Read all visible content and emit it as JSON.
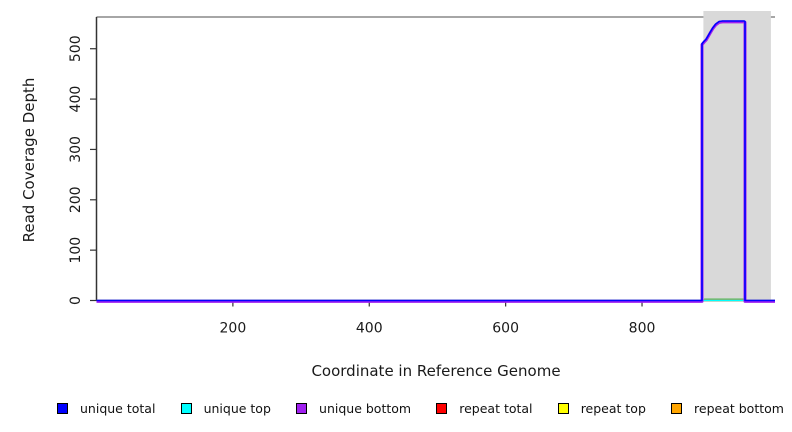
{
  "figure": {
    "background": "#ffffff",
    "text_color": "#1a1a1a"
  },
  "chart_data": {
    "type": "line",
    "title": "",
    "xlabel": "Coordinate in Reference Genome",
    "ylabel": "Read Coverage Depth",
    "xlim": [
      0,
      995
    ],
    "ylim": [
      0,
      563
    ],
    "xticks": [
      200,
      400,
      600,
      800
    ],
    "yticks": [
      0,
      100,
      200,
      300,
      400,
      500
    ],
    "grid": false,
    "box": {
      "top_border_color": "#999999",
      "axis_color": "#333333"
    },
    "highlight_region": {
      "x_start": 890,
      "x_end": 989,
      "fill": "#d9d9d9"
    },
    "extra_segments": [
      {
        "name": "baseline-green-segment",
        "color": "#6fbf6f",
        "x_start": 891,
        "x_end": 950,
        "y": 0
      }
    ],
    "series": [
      {
        "name": "repeat top",
        "color": "#ffff00",
        "stroke_width": 1.6,
        "points": [
          [
            0,
            0
          ],
          [
            995,
            0
          ]
        ]
      },
      {
        "name": "repeat bottom",
        "color": "#ffa500",
        "stroke_width": 1.6,
        "points": [
          [
            0,
            0
          ],
          [
            995,
            0
          ]
        ]
      },
      {
        "name": "repeat total",
        "color": "#ff0000",
        "stroke_width": 1.6,
        "points": [
          [
            0,
            0
          ],
          [
            995,
            0
          ]
        ]
      },
      {
        "name": "unique top",
        "color": "#00ffff",
        "stroke_width": 1.6,
        "points": [
          [
            0,
            0
          ],
          [
            995,
            0
          ]
        ]
      },
      {
        "name": "unique bottom",
        "color": "#a020f0",
        "stroke_width": 3,
        "points": [
          [
            0,
            0
          ],
          [
            888,
            0
          ],
          [
            888,
            510
          ],
          [
            891,
            515
          ],
          [
            894,
            519
          ],
          [
            897,
            526
          ],
          [
            900,
            533
          ],
          [
            904,
            542
          ],
          [
            908,
            549
          ],
          [
            913,
            554
          ],
          [
            918,
            555
          ],
          [
            947,
            555
          ],
          [
            950,
            555
          ],
          [
            951,
            554
          ],
          [
            951,
            0
          ],
          [
            995,
            0
          ]
        ]
      },
      {
        "name": "unique total",
        "color": "#0000ff",
        "stroke_width": 1.6,
        "points": [
          [
            0,
            0
          ],
          [
            888,
            0
          ],
          [
            888,
            510
          ],
          [
            891,
            515
          ],
          [
            894,
            519
          ],
          [
            897,
            526
          ],
          [
            900,
            533
          ],
          [
            904,
            542
          ],
          [
            908,
            549
          ],
          [
            913,
            554
          ],
          [
            918,
            555
          ],
          [
            947,
            555
          ],
          [
            950,
            555
          ],
          [
            951,
            554
          ],
          [
            951,
            0
          ],
          [
            995,
            0
          ]
        ]
      }
    ]
  },
  "legend": {
    "items": [
      {
        "label": "unique total",
        "color": "#0000ff"
      },
      {
        "label": "unique top",
        "color": "#00ffff"
      },
      {
        "label": "unique bottom",
        "color": "#a020f0"
      },
      {
        "label": "repeat total",
        "color": "#ff0000"
      },
      {
        "label": "repeat top",
        "color": "#ffff00"
      },
      {
        "label": "repeat bottom",
        "color": "#ffa500"
      }
    ]
  }
}
